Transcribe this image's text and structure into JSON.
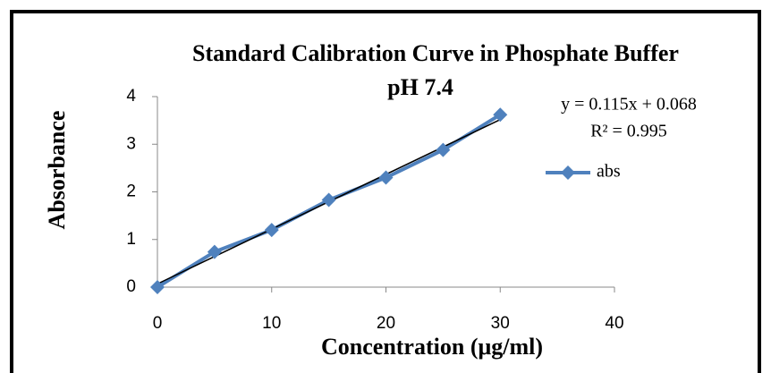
{
  "chart_data": {
    "type": "scatter",
    "title": [
      "Standard Calibration Curve in Phosphate Buffer",
      "pH 7.4"
    ],
    "x_label": "Concentration (μg/ml)",
    "y_label": "Absorbance",
    "x": [
      0,
      5,
      10,
      15,
      20,
      25,
      30
    ],
    "series": [
      {
        "name": "abs",
        "color": "#4f81bd",
        "values": [
          0,
          0.74,
          1.2,
          1.83,
          2.3,
          2.88,
          3.62
        ]
      }
    ],
    "trendline": {
      "label": "y = 0.115x + 0.068",
      "slope": 0.115,
      "intercept": 0.068,
      "color": "#000000"
    },
    "r_squared_label": "R² = 0.995",
    "xlim": [
      0,
      40
    ],
    "xticks": [
      0,
      10,
      20,
      30,
      40
    ],
    "ylim": [
      0,
      4
    ],
    "yticks": [
      0,
      1,
      2,
      3,
      4
    ],
    "legend": "right"
  }
}
